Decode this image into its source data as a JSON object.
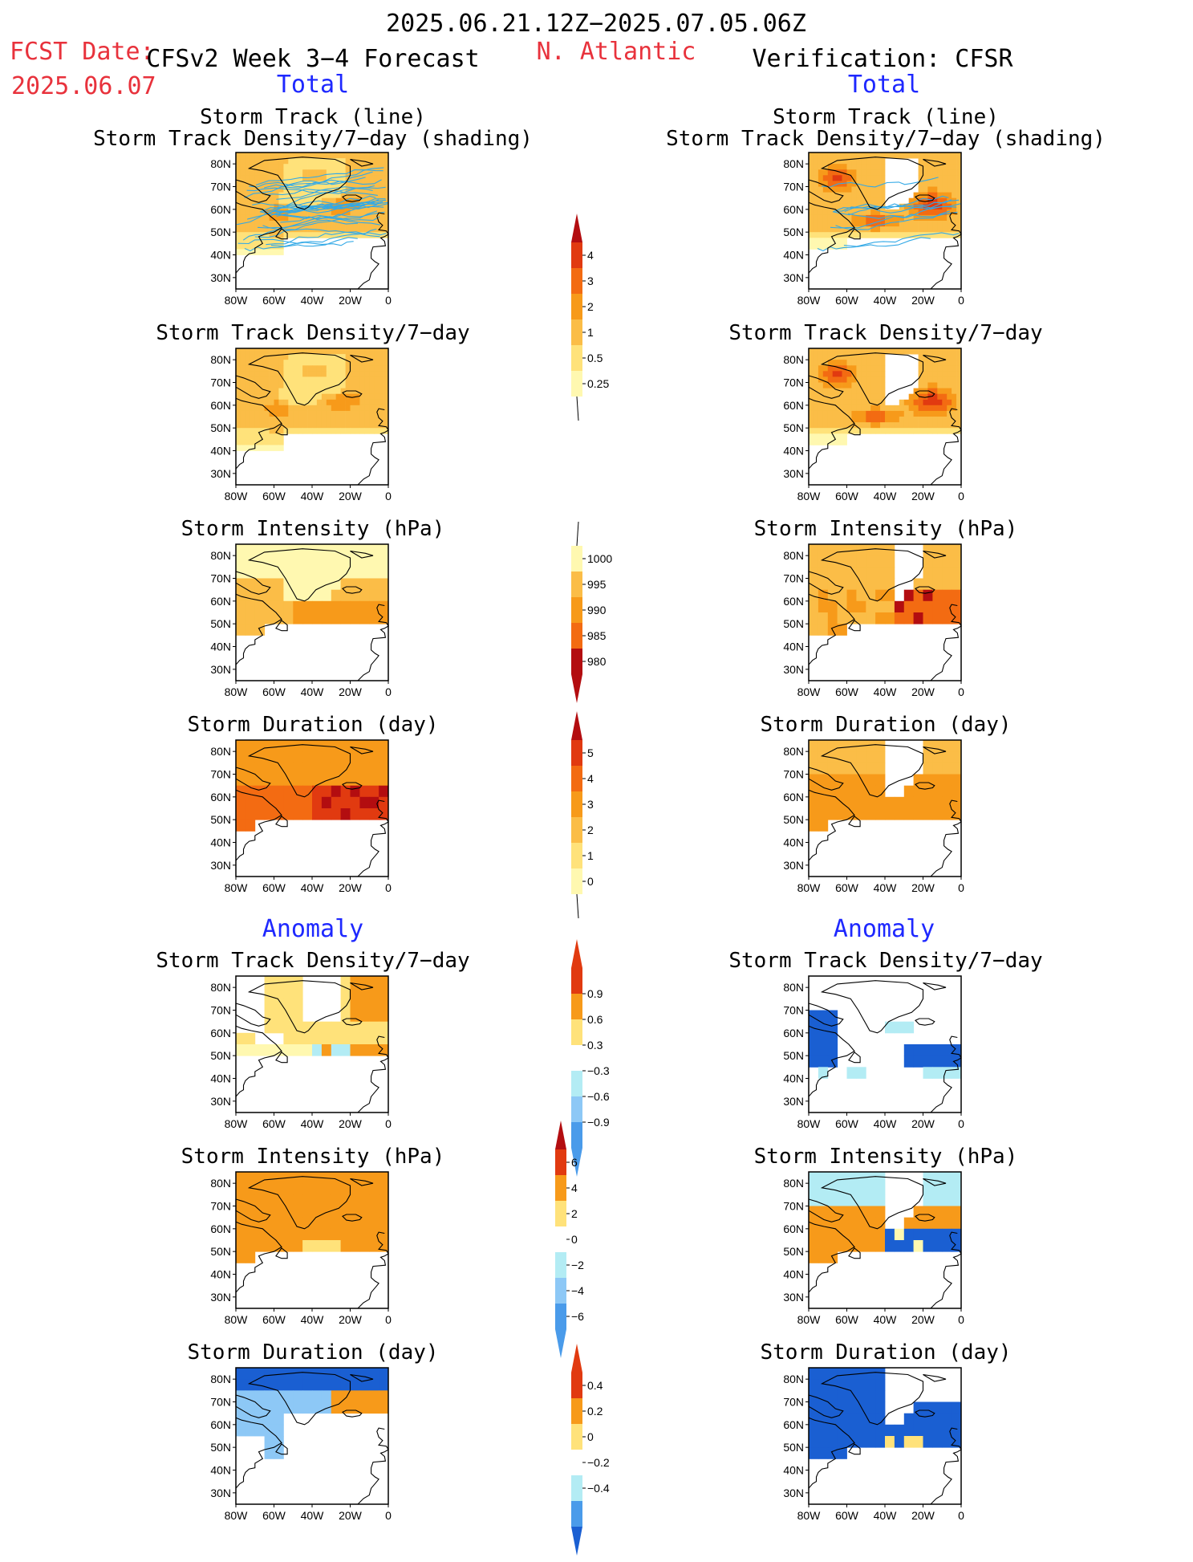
{
  "header": {
    "date_range": "2025.06.21.12Z−2025.07.05.06Z",
    "fcst_label": "FCST Date:",
    "fcst_date": "2025.06.07",
    "model": "CFSv2 Week 3−4 Forecast",
    "region": "N. Atlantic",
    "verification": "Verification: CFSR",
    "total_left": "Total",
    "total_right": "Total",
    "anomaly_left": "Anomaly",
    "anomaly_right": "Anomaly"
  },
  "axes": {
    "lat_ticks": [
      "80N",
      "70N",
      "60N",
      "50N",
      "40N",
      "30N"
    ],
    "lon_ticks": [
      "80W",
      "60W",
      "40W",
      "20W",
      "0"
    ]
  },
  "panels": {
    "track_title_1": "Storm Track (line)",
    "track_title_2": "Storm Track Density/7−day (shading)",
    "density": "Storm Track Density/7−day",
    "intensity": "Storm Intensity (hPa)",
    "duration": "Storm Duration (day)"
  },
  "colorbars": {
    "density_total": [
      "4",
      "3",
      "2",
      "1",
      "0.5",
      "0.25"
    ],
    "intensity_total": [
      "1000",
      "995",
      "990",
      "985",
      "980"
    ],
    "duration_total": [
      "5",
      "4",
      "3",
      "2",
      "1",
      "0"
    ],
    "density_anom": [
      "0.9",
      "0.6",
      "0.3",
      "−0.3",
      "−0.6",
      "−0.9"
    ],
    "intensity_anom": [
      "6",
      "4",
      "2",
      "0",
      "−2",
      "−4",
      "−6"
    ],
    "duration_anom": [
      "0.4",
      "0.2",
      "0",
      "−0.2",
      "−0.4"
    ]
  },
  "colors": {
    "warm": [
      "#fff8b0",
      "#ffe27a",
      "#fbbd47",
      "#f79a1a",
      "#f36b12",
      "#e13a10",
      "#b30d10"
    ],
    "cool": [
      "#ffffff",
      "#b3ecf4",
      "#8dc8f6",
      "#4a9bea",
      "#1a5fd2"
    ],
    "track_line": "#33a9e6"
  }
}
